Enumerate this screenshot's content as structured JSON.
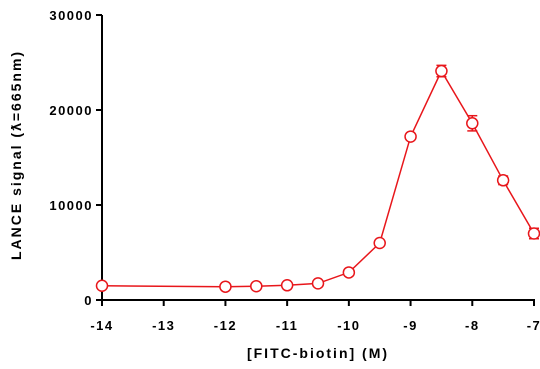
{
  "chart_data": {
    "type": "line",
    "xlabel": "[FITC-biotin] (M)",
    "ylabel": "LANCE signal (ƛ=665nm)",
    "xlim": [
      -14,
      -7
    ],
    "ylim": [
      0,
      30000
    ],
    "xticks": [
      -14,
      -13,
      -12,
      -11,
      -10,
      -9,
      -8,
      -7
    ],
    "xtick_labels": [
      "-14",
      "-13",
      "-12",
      "-11",
      "-10",
      "-9",
      "-8",
      "-7"
    ],
    "yticks": [
      0,
      10000,
      20000,
      30000
    ],
    "ytick_labels": [
      "0",
      "10000",
      "20000",
      "30000"
    ],
    "grid": false,
    "series": [
      {
        "color": "#e8161b",
        "marker": "open-circle",
        "x": [
          -14,
          -12,
          -11.5,
          -11,
          -10.5,
          -10,
          -9.5,
          -9,
          -8.5,
          -8,
          -7.5,
          -7
        ],
        "y": [
          1500,
          1400,
          1450,
          1550,
          1750,
          2900,
          6000,
          17200,
          24100,
          18600,
          12600,
          7000
        ],
        "error": [
          0,
          0,
          0,
          0,
          0,
          0,
          0,
          0,
          600,
          800,
          450,
          550
        ]
      }
    ]
  }
}
